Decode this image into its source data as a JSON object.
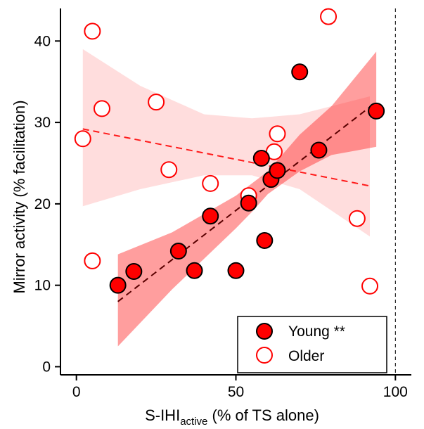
{
  "chart_data": {
    "type": "scatter",
    "xlabel_main": "S-IHI",
    "xlabel_sub": "active",
    "xlabel_rest": " (% of TS alone)",
    "ylabel": "Mirror activity (% facilitation)",
    "xlim": [
      -5,
      105
    ],
    "ylim": [
      -1,
      44
    ],
    "xticks": [
      0,
      50,
      100
    ],
    "yticks": [
      0,
      10,
      20,
      30,
      40
    ],
    "reference_line_x": 100,
    "grid": false,
    "legend_position": "bottom-right",
    "series": [
      {
        "name": "Young **",
        "marker": "filled-circle",
        "color": "#ff0000",
        "points": [
          {
            "x": 13,
            "y": 10.0
          },
          {
            "x": 18,
            "y": 11.7
          },
          {
            "x": 32,
            "y": 14.2
          },
          {
            "x": 37,
            "y": 11.8
          },
          {
            "x": 42,
            "y": 18.5
          },
          {
            "x": 50,
            "y": 11.8
          },
          {
            "x": 54,
            "y": 20.1
          },
          {
            "x": 58,
            "y": 25.6
          },
          {
            "x": 59,
            "y": 15.5
          },
          {
            "x": 61,
            "y": 23.0
          },
          {
            "x": 63,
            "y": 24.1
          },
          {
            "x": 70,
            "y": 36.2
          },
          {
            "x": 76,
            "y": 26.6
          },
          {
            "x": 94,
            "y": 31.4
          }
        ],
        "fit": {
          "x": [
            13,
            94
          ],
          "y": [
            8.0,
            32.5
          ]
        },
        "ci_band": {
          "x": [
            13,
            30,
            50,
            55,
            60,
            70,
            80,
            94
          ],
          "lower": [
            2.5,
            9.5,
            17.0,
            19.0,
            21.2,
            24.0,
            26.0,
            27.0
          ],
          "upper": [
            13.8,
            16.5,
            21.0,
            22.5,
            24.0,
            28.5,
            32.0,
            38.7
          ]
        }
      },
      {
        "name": "Older",
        "marker": "open-circle",
        "color": "#ff0000",
        "points": [
          {
            "x": 2,
            "y": 28.0
          },
          {
            "x": 5,
            "y": 41.2
          },
          {
            "x": 5,
            "y": 13.0
          },
          {
            "x": 8,
            "y": 31.7
          },
          {
            "x": 25,
            "y": 32.5
          },
          {
            "x": 29,
            "y": 24.2
          },
          {
            "x": 42,
            "y": 22.5
          },
          {
            "x": 54,
            "y": 21.0
          },
          {
            "x": 62,
            "y": 26.4
          },
          {
            "x": 63,
            "y": 28.6
          },
          {
            "x": 79,
            "y": 43.0
          },
          {
            "x": 88,
            "y": 18.2
          },
          {
            "x": 92,
            "y": 9.9
          }
        ],
        "fit": {
          "x": [
            2,
            92
          ],
          "y": [
            29.2,
            22.2
          ]
        },
        "ci_band": {
          "x": [
            2,
            20,
            40,
            55,
            70,
            92
          ],
          "lower": [
            19.7,
            21.8,
            23.5,
            23.5,
            21.8,
            16.0
          ],
          "upper": [
            39.0,
            34.5,
            31.0,
            30.5,
            31.0,
            33.2
          ]
        }
      }
    ]
  }
}
